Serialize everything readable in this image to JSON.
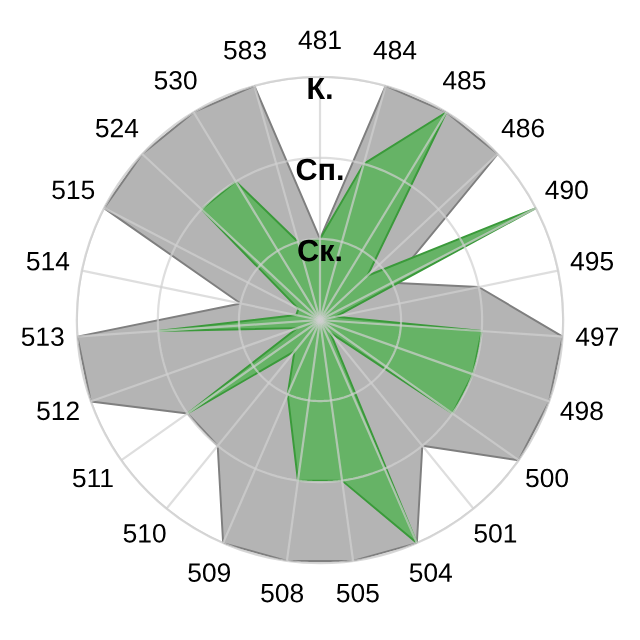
{
  "chart_data": {
    "type": "radar",
    "categories": [
      "481",
      "484",
      "485",
      "486",
      "490",
      "495",
      "497",
      "498",
      "500",
      "501",
      "504",
      "505",
      "508",
      "509",
      "510",
      "511",
      "512",
      "513",
      "514",
      "515",
      "524",
      "530",
      "583"
    ],
    "series": [
      {
        "color": "#b4b4b4",
        "values": [
          1,
          3,
          3,
          3,
          1,
          2,
          3,
          3,
          3,
          2,
          3,
          3,
          3,
          3,
          2,
          2,
          3,
          3,
          1,
          3,
          3,
          3,
          3
        ]
      },
      {
        "color": "#66b366",
        "values": [
          1,
          2,
          3,
          0.8,
          3,
          0.2,
          2,
          2,
          2,
          0.2,
          3,
          2,
          2,
          1,
          0.5,
          2,
          0.3,
          2,
          0.3,
          0.3,
          2,
          2,
          1
        ]
      }
    ],
    "ylim": [
      0,
      3
    ],
    "yticks": [
      {
        "value": 1,
        "label": "Ск."
      },
      {
        "value": 2,
        "label": "Сп."
      },
      {
        "value": 3,
        "label": "К."
      }
    ],
    "grid": true,
    "legend": false
  }
}
